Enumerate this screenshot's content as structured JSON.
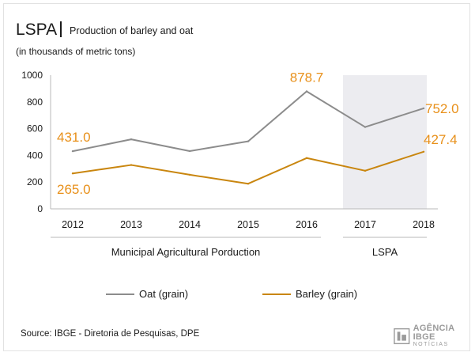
{
  "header": {
    "title": "LSPA",
    "subtitle": "Production of barley and oat",
    "units": "(in thousands of metric tons)"
  },
  "chart_data": {
    "type": "line",
    "x": [
      "2012",
      "2013",
      "2014",
      "2015",
      "2016",
      "2017",
      "2018"
    ],
    "ylim": [
      0,
      1000
    ],
    "yticks": [
      0,
      200,
      400,
      600,
      800,
      1000
    ],
    "grid": false,
    "series": [
      {
        "name": "Oat (grain)",
        "color": "#8c8c8c",
        "values": [
          431.0,
          520,
          432,
          505,
          878.7,
          612,
          752.0
        ]
      },
      {
        "name": "Barley (grain)",
        "color": "#c9860f",
        "values": [
          265.0,
          328,
          255,
          188,
          380,
          285,
          427.4
        ]
      }
    ],
    "data_labels": [
      {
        "series": 0,
        "index": 0,
        "text": "431.0"
      },
      {
        "series": 1,
        "index": 0,
        "text": "265.0"
      },
      {
        "series": 0,
        "index": 4,
        "text": "878.7"
      },
      {
        "series": 0,
        "index": 6,
        "text": "752.0"
      },
      {
        "series": 1,
        "index": 6,
        "text": "427.4"
      }
    ],
    "groups": [
      {
        "label": "Municipal Agricultural Porduction",
        "from": "2012",
        "to": "2016"
      },
      {
        "label": "LSPA",
        "from": "2017",
        "to": "2018",
        "shaded": true
      }
    ],
    "legend_position": "bottom",
    "shade_color": "#ececf0",
    "label_color": "#e8901a"
  },
  "legend": [
    {
      "label": "Oat (grain)",
      "color": "#8c8c8c"
    },
    {
      "label": "Barley (grain)",
      "color": "#c9860f"
    }
  ],
  "footer": {
    "source": "Source: IBGE - Diretoria de Pesquisas, DPE",
    "logo_line1": "AGÊNCIA IBGE",
    "logo_line2": "NOTÍCIAS",
    "logo_icon": "ibge-logo-icon"
  }
}
